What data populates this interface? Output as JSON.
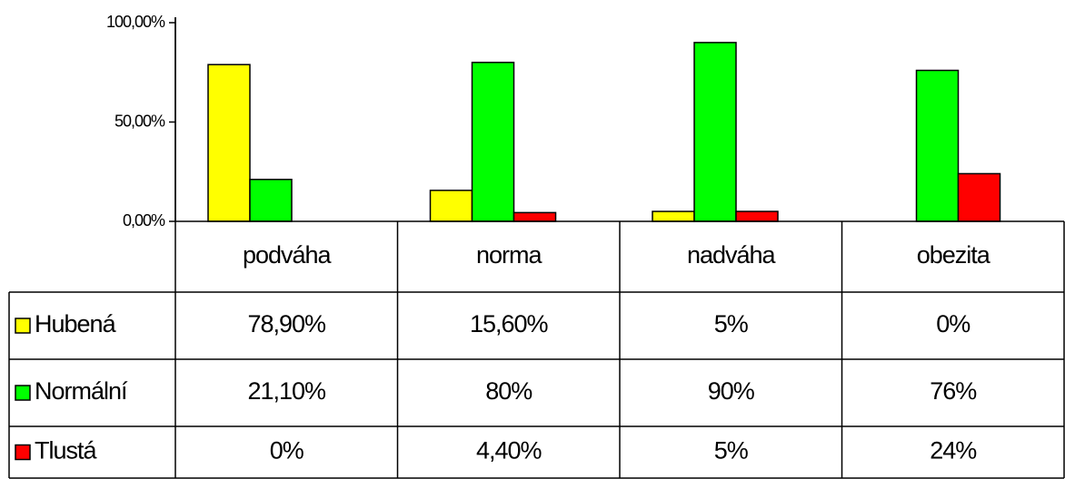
{
  "chart_data": {
    "type": "bar",
    "categories": [
      "podváha",
      "norma",
      "nadváha",
      "obezita"
    ],
    "series": [
      {
        "name": "Hubená",
        "color": "#ffff00",
        "values": [
          78.9,
          15.6,
          5,
          0
        ],
        "value_labels": [
          "78,90%",
          "15,60%",
          "5%",
          "0%"
        ]
      },
      {
        "name": "Normální",
        "color": "#00ff00",
        "values": [
          21.1,
          80,
          90,
          76
        ],
        "value_labels": [
          "21,10%",
          "80%",
          "90%",
          "76%"
        ]
      },
      {
        "name": "Tlustá",
        "color": "#ff0000",
        "values": [
          0,
          4.4,
          5,
          24
        ],
        "value_labels": [
          "0%",
          "4,40%",
          "5%",
          "24%"
        ]
      }
    ],
    "ylim": [
      0,
      100
    ],
    "yticks": [
      {
        "value": 0,
        "label": "0,00%"
      },
      {
        "value": 50,
        "label": "50,00%"
      },
      {
        "value": 100,
        "label": "100,00%"
      }
    ],
    "grid": false
  }
}
